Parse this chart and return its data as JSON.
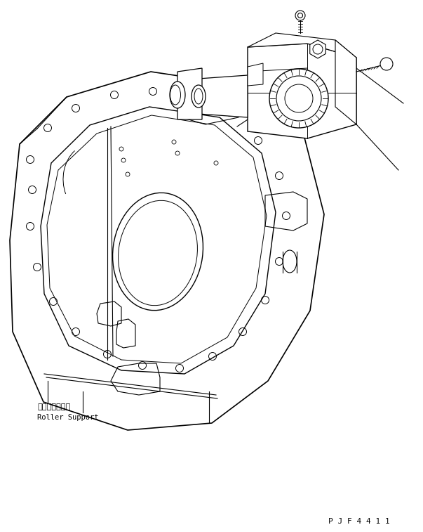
{
  "bg_color": "#ffffff",
  "line_color": "#000000",
  "label_japanese": "ローラサポート",
  "label_english": "Roller Support",
  "part_number": "PJF4411",
  "fig_width": 6.03,
  "fig_height": 7.57,
  "dpi": 100
}
